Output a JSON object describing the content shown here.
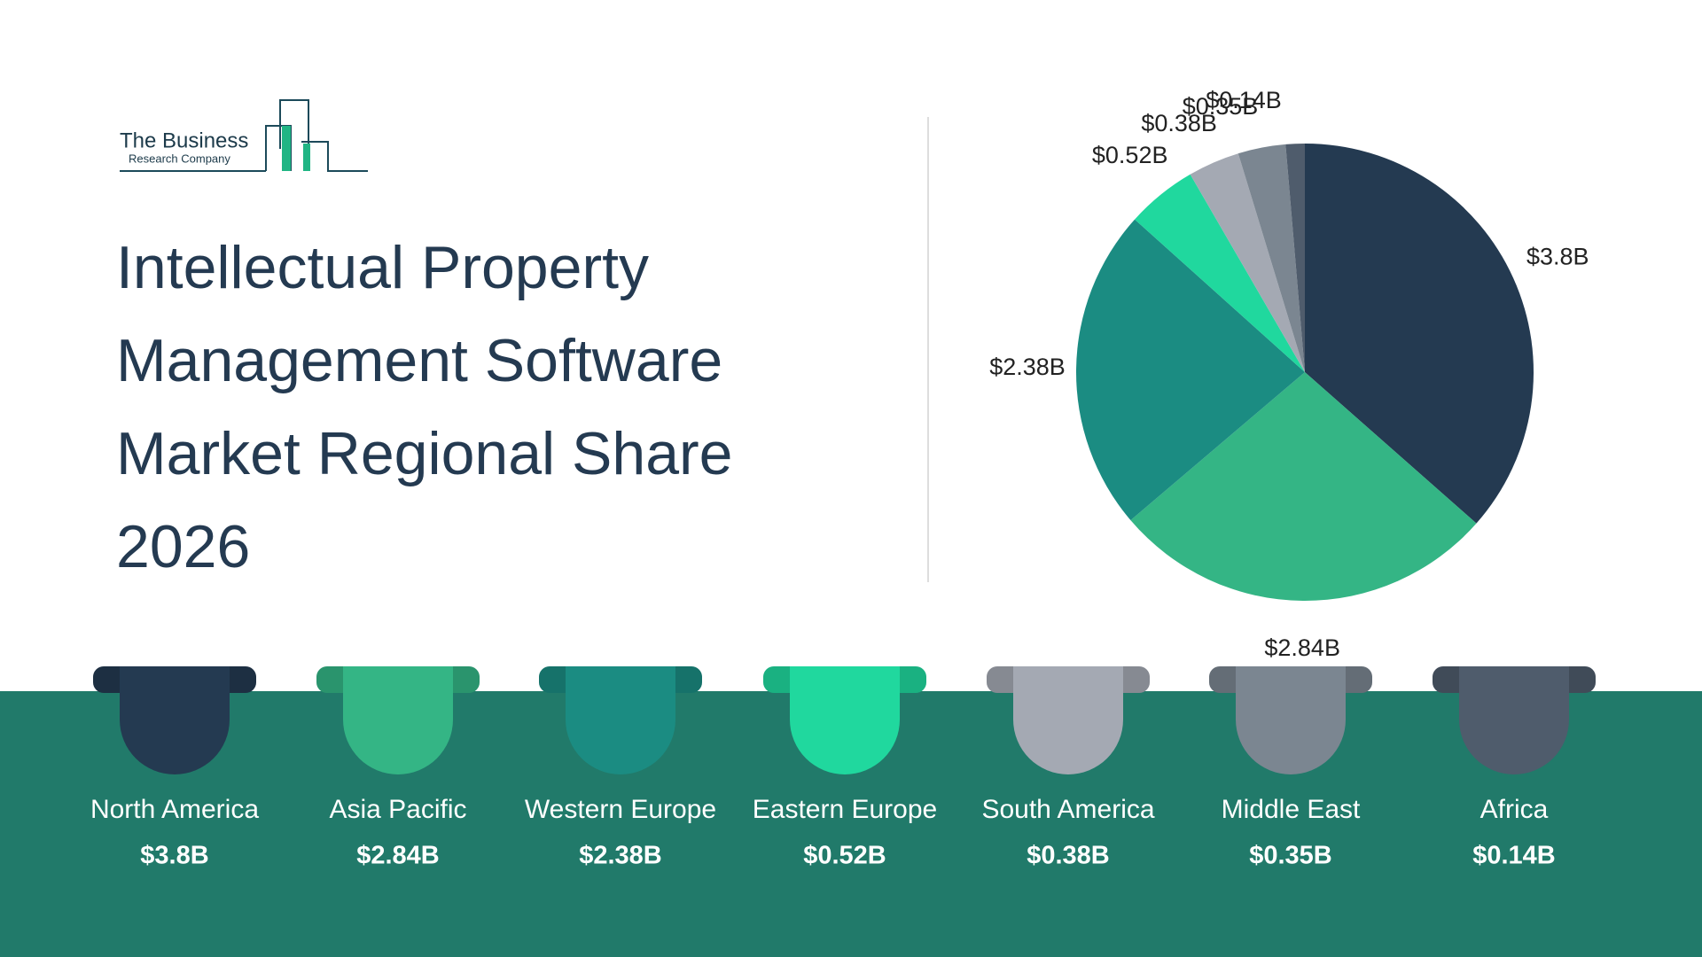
{
  "logo": {
    "line1": "The Business",
    "line2": "Research Company"
  },
  "chart_data": {
    "type": "pie",
    "title": "Intellectual Property Management Software Market Regional Share 2026",
    "categories": [
      "North America",
      "Asia Pacific",
      "Western Europe",
      "Eastern Europe",
      "South America",
      "Middle East",
      "Africa"
    ],
    "values": [
      3.8,
      2.84,
      2.38,
      0.52,
      0.38,
      0.35,
      0.14
    ],
    "value_labels": [
      "$3.8B",
      "$2.84B",
      "$2.38B",
      "$0.52B",
      "$0.38B",
      "$0.35B",
      "$0.14B"
    ],
    "colors": [
      "#243a51",
      "#34b585",
      "#1b8c82",
      "#20d89e",
      "#a4a9b3",
      "#7b8691",
      "#4f5c6c"
    ]
  }
}
